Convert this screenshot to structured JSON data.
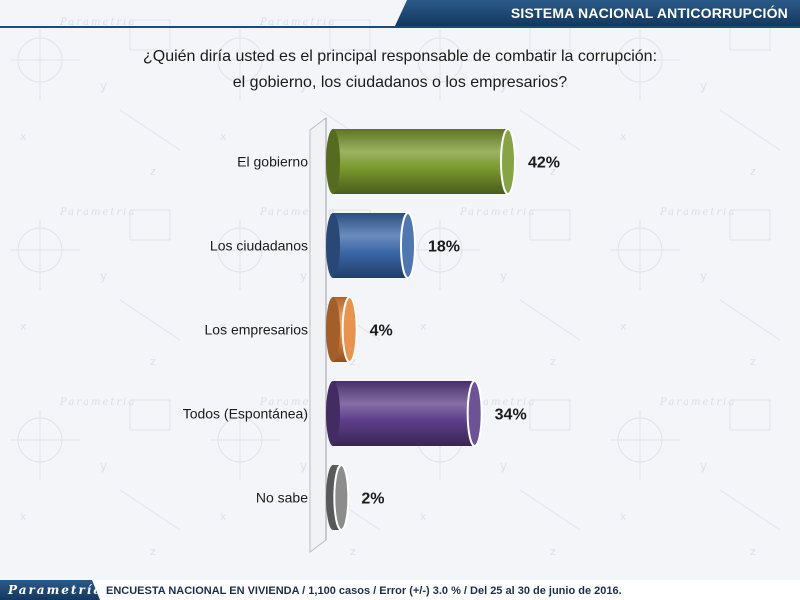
{
  "header": {
    "title": "SISTEMA NACIONAL ANTICORRUPCIÓN"
  },
  "question": {
    "line1": "¿Quién diría usted es el principal responsable de combatir la corrupción:",
    "line2": "el gobierno, los ciudadanos o los empresarios?"
  },
  "footer": {
    "brand": "Parametría",
    "note": "ENCUESTA NACIONAL EN VIVIENDA / 1,100 casos / Error (+/-) 3.0 % / Del 25 al 30 de junio de 2016."
  },
  "watermark": "Parametría",
  "chart_data": {
    "type": "bar",
    "orientation": "horizontal",
    "categories": [
      "El gobierno",
      "Los ciudadanos",
      "Los empresarios",
      "Todos (Espontánea)",
      "No sabe"
    ],
    "values": [
      42,
      18,
      4,
      34,
      2
    ],
    "data_labels": [
      "42%",
      "18%",
      "4%",
      "34%",
      "2%"
    ],
    "colors": [
      "#7a9a2e",
      "#3a67a8",
      "#e8873a",
      "#5e3f8a",
      "#7f7f7f"
    ],
    "xlim": [
      0,
      42
    ],
    "grid": false,
    "legend": "none"
  }
}
